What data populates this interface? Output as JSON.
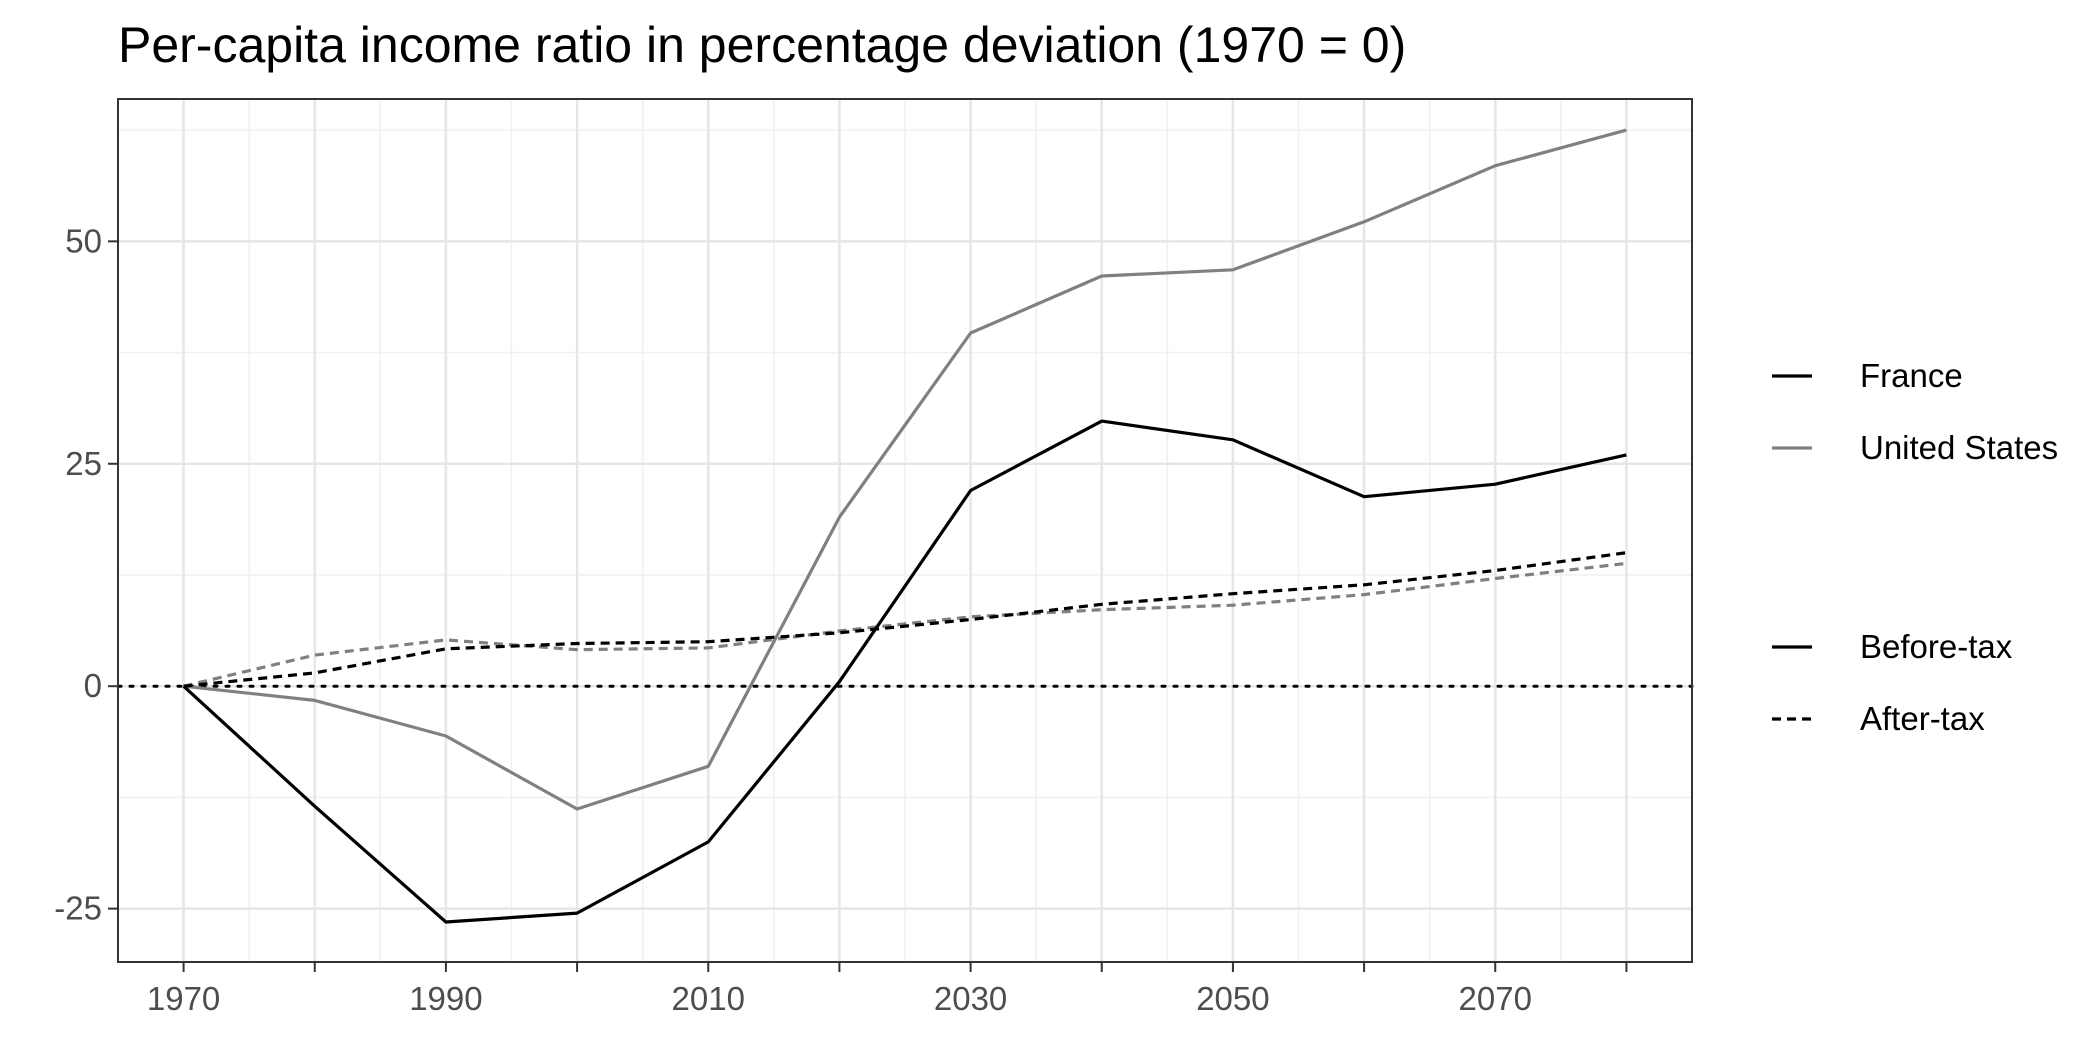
{
  "chart_data": {
    "type": "line",
    "title": "Per-capita income ratio in percentage deviation (1970 = 0)",
    "xlabel": "",
    "ylabel": "",
    "x": [
      1970,
      1980,
      1990,
      2000,
      2010,
      2020,
      2030,
      2040,
      2050,
      2060,
      2070,
      2080
    ],
    "xlim": [
      1965,
      2085
    ],
    "ylim": [
      -31,
      66
    ],
    "x_ticks": [
      1970,
      1990,
      2010,
      2030,
      2050,
      2070
    ],
    "y_ticks": [
      -25,
      0,
      25,
      50
    ],
    "x_tick_labels": [
      "1970",
      "1990",
      "2010",
      "2030",
      "2050",
      "2070"
    ],
    "y_tick_labels": [
      "-25",
      "0",
      "25",
      "50"
    ],
    "grid": true,
    "reference_line": {
      "y": 0,
      "style": "dotted"
    },
    "series": [
      {
        "country": "France",
        "measure": "Before-tax",
        "color": "#000000",
        "dash": "solid",
        "values": [
          0,
          -13.5,
          -26.5,
          -25.5,
          -17.5,
          0.5,
          22,
          29.8,
          27.7,
          21.3,
          22.7,
          26
        ]
      },
      {
        "country": "United States",
        "measure": "Before-tax",
        "color": "#808080",
        "dash": "solid",
        "values": [
          0,
          -1.6,
          -5.6,
          -13.8,
          -9,
          19,
          39.7,
          46.1,
          46.8,
          52.2,
          58.5,
          62.5
        ]
      },
      {
        "country": "France",
        "measure": "After-tax",
        "color": "#000000",
        "dash": "dashed",
        "values": [
          0,
          1.5,
          4.2,
          4.8,
          5,
          6,
          7.5,
          9.2,
          10.4,
          11.4,
          13,
          15
        ]
      },
      {
        "country": "United States",
        "measure": "After-tax",
        "color": "#808080",
        "dash": "dashed",
        "values": [
          0,
          3.5,
          5.2,
          4.1,
          4.3,
          6.2,
          7.8,
          8.6,
          9.1,
          10.3,
          12.1,
          13.8
        ]
      }
    ],
    "legend": {
      "placement": "right",
      "country_entries": [
        {
          "label": "France",
          "color": "#000000"
        },
        {
          "label": "United States",
          "color": "#808080"
        }
      ],
      "measure_entries": [
        {
          "label": "Before-tax",
          "dash": "solid"
        },
        {
          "label": "After-tax",
          "dash": "dashed"
        }
      ]
    }
  }
}
